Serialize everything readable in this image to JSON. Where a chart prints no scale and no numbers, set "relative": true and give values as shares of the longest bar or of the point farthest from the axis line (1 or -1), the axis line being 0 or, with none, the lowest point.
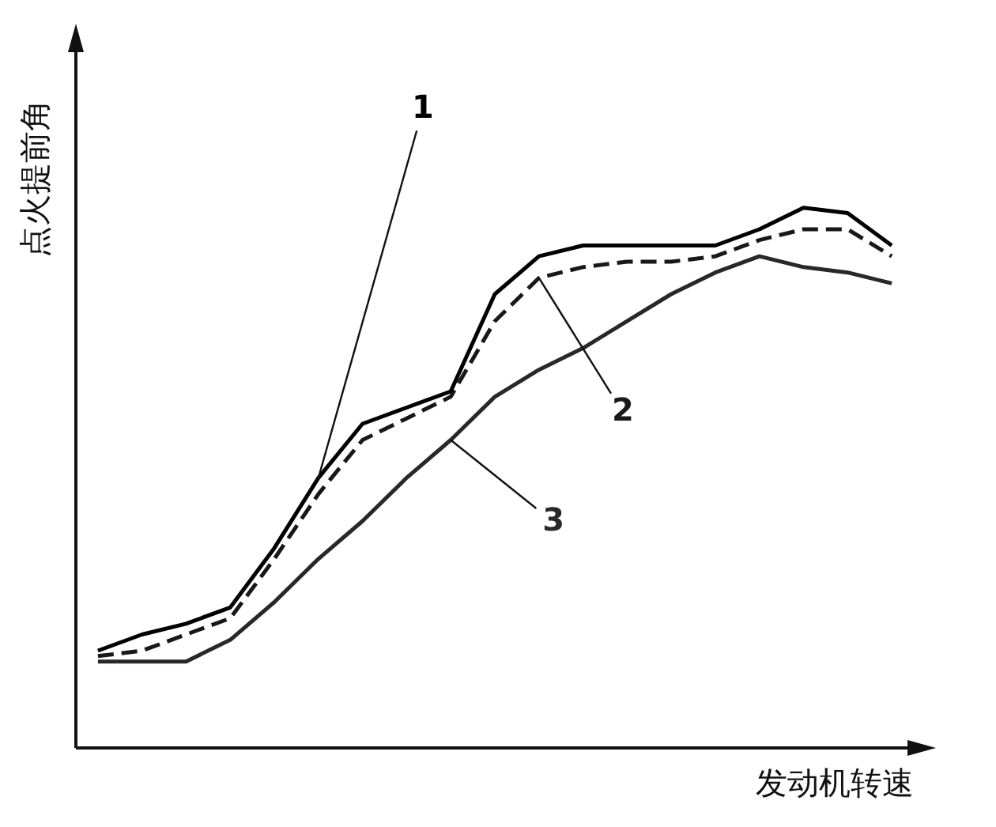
{
  "chart_data": {
    "type": "line",
    "relative": true,
    "xlabel": "发动机转速",
    "ylabel": "点火提前角",
    "tick_labels": false,
    "marker": "none",
    "categories": [
      null,
      null,
      null,
      null,
      null,
      null,
      null,
      null,
      null,
      null,
      null,
      null,
      null,
      null,
      null,
      null,
      null,
      null,
      null
    ],
    "series": [
      {
        "name": "1",
        "color": "#000000",
        "line_style": "solid",
        "values": [
          0.18,
          0.21,
          0.23,
          0.26,
          0.37,
          0.5,
          0.6,
          0.63,
          0.66,
          0.84,
          0.91,
          0.93,
          0.93,
          0.93,
          0.93,
          0.96,
          1,
          0.99,
          0.93
        ]
      },
      {
        "name": "2",
        "color": "#181818",
        "line_style": "dashed",
        "values": [
          0.17,
          0.18,
          0.21,
          0.24,
          0.35,
          0.47,
          0.57,
          0.61,
          0.65,
          0.79,
          0.87,
          0.89,
          0.9,
          0.9,
          0.91,
          0.94,
          0.96,
          0.96,
          0.91
        ]
      },
      {
        "name": "3",
        "color": "#282828",
        "line_style": "solid",
        "values": [
          0.16,
          0.16,
          0.16,
          0.2,
          0.27,
          0.35,
          0.42,
          0.5,
          0.57,
          0.65,
          0.7,
          0.74,
          0.79,
          0.84,
          0.88,
          0.91,
          0.89,
          0.88,
          0.86
        ]
      }
    ]
  }
}
